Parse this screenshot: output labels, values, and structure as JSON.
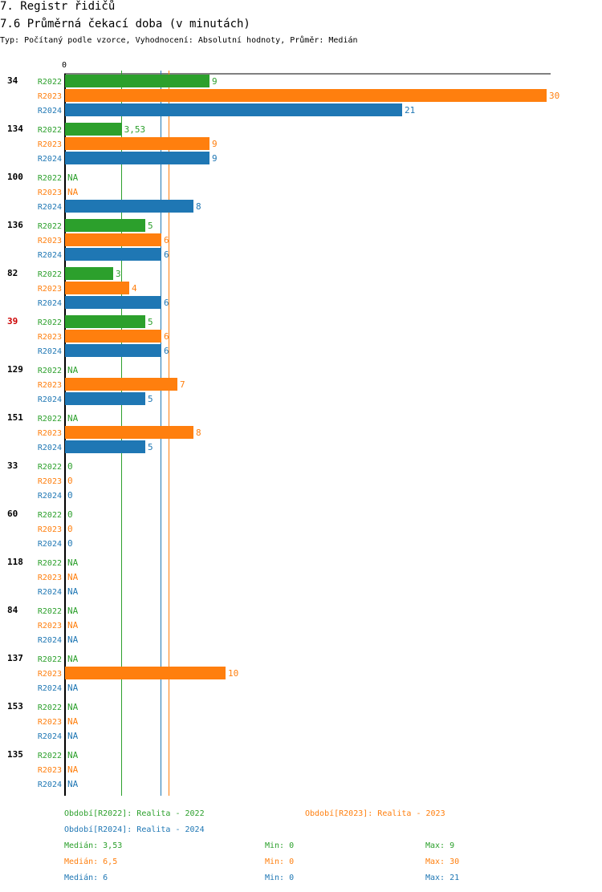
{
  "chart_data": {
    "type": "bar",
    "title": "7. Registr řidičů",
    "subtitle": "7.6 Průměrná čekací doba (v minutách)",
    "description": "Typ: Počítaný podle vzorce, Vyhodnocení: Absolutní hodnoty, Průměr: Medián",
    "categories": [
      "34",
      "134",
      "100",
      "136",
      "82",
      "39",
      "129",
      "151",
      "33",
      "60",
      "118",
      "84",
      "137",
      "153",
      "135"
    ],
    "highlight_category": "39",
    "highlight_color": "#cc0000",
    "xlim": [
      0,
      30
    ],
    "xticks": [
      0
    ],
    "series": [
      {
        "name": "R2022",
        "color": "#2ca02c",
        "values": [
          9,
          3.53,
          null,
          5,
          3,
          5,
          null,
          null,
          0,
          0,
          null,
          null,
          null,
          null,
          null
        ],
        "value_labels": [
          "9",
          "3,53",
          "NA",
          "5",
          "3",
          "5",
          "NA",
          "NA",
          "0",
          "0",
          "NA",
          "NA",
          "NA",
          "NA",
          "NA"
        ],
        "legend_label": "Období[R2022]: Realita - 2022",
        "median": 3.53,
        "median_label": "Medián: 3,53",
        "min_label": "Min: 0",
        "max_label": "Max: 9"
      },
      {
        "name": "R2023",
        "color": "#ff7f0e",
        "values": [
          30,
          9,
          null,
          6,
          4,
          6,
          7,
          8,
          0,
          0,
          null,
          null,
          10,
          null,
          null
        ],
        "value_labels": [
          "30",
          "9",
          "NA",
          "6",
          "4",
          "6",
          "7",
          "8",
          "0",
          "0",
          "NA",
          "NA",
          "10",
          "NA",
          "NA"
        ],
        "legend_label": "Období[R2023]: Realita - 2023",
        "median": 6.5,
        "median_label": "Medián: 6,5",
        "min_label": "Min: 0",
        "max_label": "Max: 30"
      },
      {
        "name": "R2024",
        "color": "#1f77b4",
        "values": [
          21,
          9,
          8,
          6,
          6,
          6,
          5,
          5,
          0,
          0,
          null,
          null,
          null,
          null,
          null
        ],
        "value_labels": [
          "21",
          "9",
          "8",
          "6",
          "6",
          "6",
          "5",
          "5",
          "0",
          "0",
          "NA",
          "NA",
          "NA",
          "NA",
          "NA"
        ],
        "legend_label": "Období[R2024]: Realita - 2024",
        "median": 6,
        "median_label": "Medián: 6",
        "min_label": "Min: 0",
        "max_label": "Max: 21"
      }
    ]
  }
}
